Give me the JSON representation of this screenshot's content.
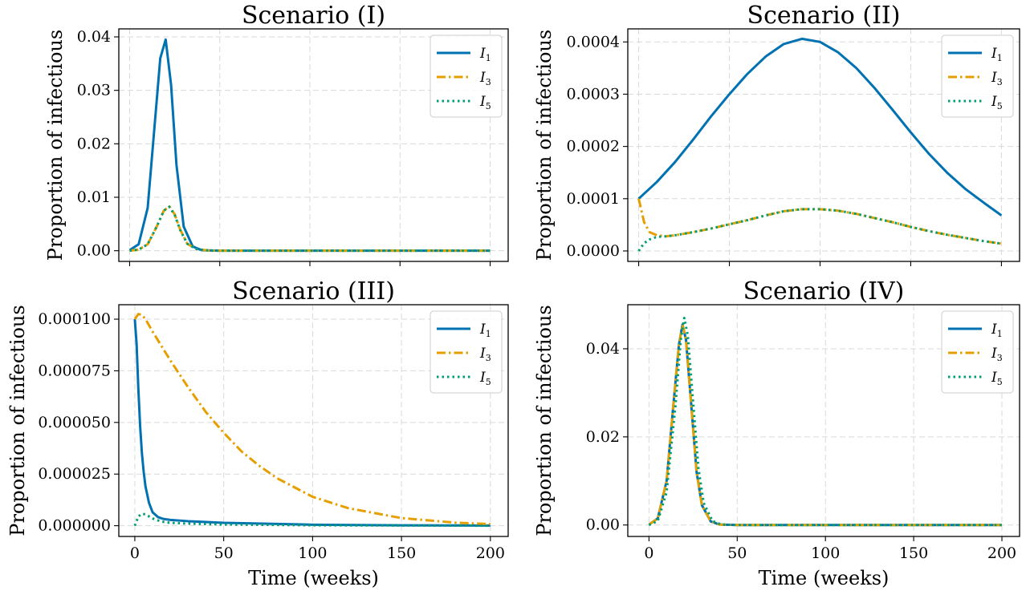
{
  "chart_data": [
    {
      "type": "line",
      "title": "Scenario (I)",
      "xlabel": "",
      "ylabel": "Proportion of infectious",
      "xlim": [
        -6,
        210
      ],
      "ylim": [
        -0.002,
        0.0415
      ],
      "xticks": [
        0,
        50,
        100,
        150,
        200
      ],
      "xtick_labels_visible": false,
      "yticks": [
        0.0,
        0.01,
        0.02,
        0.03,
        0.04
      ],
      "ytick_labels": [
        "0.00",
        "0.01",
        "0.02",
        "0.03",
        "0.04"
      ],
      "grid": true,
      "legend_position": "top-right",
      "series": [
        {
          "name": "I",
          "sub": "1",
          "color": "#0072B2",
          "style": "solid",
          "x": [
            0,
            5,
            10,
            14,
            17,
            20,
            23,
            26,
            30,
            35,
            40,
            50,
            100,
            150,
            200
          ],
          "y": [
            0.0001,
            0.0012,
            0.008,
            0.024,
            0.036,
            0.0395,
            0.031,
            0.016,
            0.0045,
            0.0008,
            0.0001,
            0.0,
            0.0,
            0.0,
            0.0
          ]
        },
        {
          "name": "I",
          "sub": "3",
          "color": "#E69F00",
          "style": "dashdot",
          "x": [
            0,
            5,
            10,
            15,
            19,
            22,
            25,
            28,
            32,
            37,
            45,
            60,
            100,
            150,
            200
          ],
          "y": [
            0.0,
            0.0002,
            0.0012,
            0.0045,
            0.0075,
            0.0083,
            0.0068,
            0.004,
            0.0013,
            0.0003,
            0.0,
            0.0,
            0.0,
            0.0,
            0.0
          ]
        },
        {
          "name": "I",
          "sub": "5",
          "color": "#009E73",
          "style": "dotted",
          "x": [
            0,
            5,
            10,
            15,
            19,
            22,
            25,
            28,
            32,
            37,
            45,
            60,
            100,
            150,
            200
          ],
          "y": [
            0.0,
            0.0002,
            0.0012,
            0.0045,
            0.0075,
            0.0082,
            0.0067,
            0.0039,
            0.0013,
            0.0003,
            0.0,
            0.0,
            0.0,
            0.0,
            0.0
          ]
        }
      ]
    },
    {
      "type": "line",
      "title": "Scenario (II)",
      "xlabel": "",
      "ylabel": "Proportion of infectious",
      "xlim": [
        -6,
        210
      ],
      "ylim": [
        -2e-05,
        0.000425
      ],
      "xticks": [
        0,
        50,
        100,
        150,
        200
      ],
      "xtick_labels_visible": false,
      "yticks": [
        0.0,
        0.0001,
        0.0002,
        0.0003,
        0.0004
      ],
      "ytick_labels": [
        "0.0000",
        "0.0001",
        "0.0002",
        "0.0003",
        "0.0004"
      ],
      "grid": true,
      "legend_position": "top-right",
      "series": [
        {
          "name": "I",
          "sub": "1",
          "color": "#0072B2",
          "style": "solid",
          "x": [
            0,
            10,
            20,
            30,
            40,
            50,
            60,
            70,
            80,
            90,
            100,
            110,
            120,
            130,
            140,
            150,
            160,
            170,
            180,
            190,
            200
          ],
          "y": [
            0.0001,
            0.000132,
            0.00017,
            0.000213,
            0.000258,
            0.0003,
            0.000339,
            0.000372,
            0.000396,
            0.000406,
            0.0004,
            0.00038,
            0.00035,
            0.000312,
            0.00027,
            0.000227,
            0.000186,
            0.00015,
            0.000119,
            9.3e-05,
            6.8e-05
          ]
        },
        {
          "name": "I",
          "sub": "3",
          "color": "#E69F00",
          "style": "dashdot",
          "x": [
            0,
            3,
            6,
            10,
            15,
            20,
            30,
            40,
            50,
            60,
            70,
            80,
            90,
            100,
            110,
            120,
            130,
            140,
            150,
            160,
            170,
            180,
            190,
            200
          ],
          "y": [
            0.0001,
            5.5e-05,
            3.6e-05,
            3e-05,
            2.8e-05,
            3e-05,
            3.6e-05,
            4.3e-05,
            5.1e-05,
            5.9e-05,
            6.8e-05,
            7.6e-05,
            8e-05,
            8e-05,
            7.7e-05,
            7.1e-05,
            6.3e-05,
            5.5e-05,
            4.6e-05,
            3.8e-05,
            3.1e-05,
            2.5e-05,
            1.9e-05,
            1.4e-05
          ]
        },
        {
          "name": "I",
          "sub": "5",
          "color": "#009E73",
          "style": "dotted",
          "x": [
            0,
            3,
            6,
            10,
            15,
            20,
            30,
            40,
            50,
            60,
            70,
            80,
            90,
            100,
            110,
            120,
            130,
            140,
            150,
            160,
            170,
            180,
            190,
            200
          ],
          "y": [
            0.0,
            1.5e-05,
            2.2e-05,
            2.7e-05,
            2.8e-05,
            3e-05,
            3.6e-05,
            4.3e-05,
            5.1e-05,
            5.9e-05,
            6.8e-05,
            7.6e-05,
            8e-05,
            8e-05,
            7.7e-05,
            7.1e-05,
            6.3e-05,
            5.5e-05,
            4.6e-05,
            3.8e-05,
            3.1e-05,
            2.5e-05,
            1.9e-05,
            1.4e-05
          ]
        }
      ]
    },
    {
      "type": "line",
      "title": "Scenario (III)",
      "xlabel": "Time (weeks)",
      "ylabel": "Proportion of infectious",
      "xlim": [
        -9,
        210
      ],
      "ylim": [
        -5.2e-06,
        0.000107
      ],
      "xticks": [
        0,
        50,
        100,
        150,
        200
      ],
      "xtick_labels_visible": true,
      "yticks": [
        0.0,
        2.5e-05,
        5e-05,
        7.5e-05,
        0.0001
      ],
      "ytick_labels": [
        "0.000000",
        "0.000025",
        "0.000050",
        "0.000075",
        "0.000100"
      ],
      "grid": true,
      "legend_position": "top-right",
      "series": [
        {
          "name": "I",
          "sub": "1",
          "color": "#0072B2",
          "style": "solid",
          "x": [
            0,
            1,
            2,
            3,
            4,
            5,
            6,
            8,
            10,
            13,
            16,
            20,
            30,
            50,
            100,
            150,
            200
          ],
          "y": [
            0.0001,
            8.8e-05,
            6.6e-05,
            4.8e-05,
            3.5e-05,
            2.6e-05,
            1.9e-05,
            1.1e-05,
            6.5e-06,
            4.2e-06,
            3.3e-06,
            2.8e-06,
            2.2e-06,
            1.4e-06,
            5e-07,
            2e-07,
            1e-07
          ]
        },
        {
          "name": "I",
          "sub": "3",
          "color": "#E69F00",
          "style": "dashdot",
          "x": [
            0,
            2,
            4,
            6,
            10,
            20,
            30,
            40,
            50,
            60,
            70,
            80,
            100,
            120,
            150,
            180,
            200
          ],
          "y": [
            0.0001,
            0.0001025,
            0.000102,
            0.0001,
            9.4e-05,
            8e-05,
            6.7e-05,
            5.5e-05,
            4.5e-05,
            3.6e-05,
            2.9e-05,
            2.3e-05,
            1.4e-05,
            8.5e-06,
            3.7e-06,
            1.5e-06,
            8e-07
          ]
        },
        {
          "name": "I",
          "sub": "5",
          "color": "#009E73",
          "style": "dotted",
          "x": [
            0,
            2,
            4,
            6,
            8,
            10,
            15,
            20,
            30,
            50,
            100,
            150,
            200
          ],
          "y": [
            0.0,
            4.5e-06,
            5.8e-06,
            5.5e-06,
            4.5e-06,
            3.5e-06,
            2e-06,
            1.4e-06,
            1e-06,
            6e-07,
            2e-07,
            1e-07,
            0.0
          ]
        }
      ]
    },
    {
      "type": "line",
      "title": "Scenario (IV)",
      "xlabel": "Time (weeks)",
      "ylabel": "Proportion of infectious",
      "xlim": [
        -12,
        210
      ],
      "ylim": [
        -0.0026,
        0.05
      ],
      "xticks": [
        0,
        50,
        100,
        150,
        200
      ],
      "xtick_labels_visible": true,
      "yticks": [
        0.0,
        0.02,
        0.04
      ],
      "ytick_labels": [
        "0.00",
        "0.02",
        "0.04"
      ],
      "grid": true,
      "legend_position": "top-right",
      "series": [
        {
          "name": "I",
          "sub": "1",
          "color": "#0072B2",
          "style": "solid",
          "x": [
            0,
            5,
            10,
            14,
            17,
            19,
            21,
            24,
            27,
            30,
            35,
            40,
            50,
            100,
            150,
            200
          ],
          "y": [
            0.0001,
            0.0015,
            0.01,
            0.028,
            0.041,
            0.0455,
            0.042,
            0.027,
            0.012,
            0.0045,
            0.0008,
            0.0001,
            0.0,
            0.0,
            0.0,
            0.0
          ]
        },
        {
          "name": "I",
          "sub": "3",
          "color": "#E69F00",
          "style": "dashdot",
          "x": [
            0,
            5,
            10,
            14,
            17,
            19,
            21,
            24,
            27,
            30,
            35,
            40,
            50,
            100,
            150,
            200
          ],
          "y": [
            0.0001,
            0.0015,
            0.01,
            0.028,
            0.041,
            0.0455,
            0.042,
            0.027,
            0.012,
            0.0045,
            0.0008,
            0.0001,
            0.0,
            0.0,
            0.0,
            0.0
          ]
        },
        {
          "name": "I",
          "sub": "5",
          "color": "#009E73",
          "style": "dotted",
          "x": [
            0,
            5,
            10,
            15,
            18,
            20,
            22,
            25,
            28,
            31,
            36,
            41,
            50,
            100,
            150,
            200
          ],
          "y": [
            0.0,
            0.0009,
            0.0075,
            0.027,
            0.042,
            0.047,
            0.043,
            0.028,
            0.013,
            0.005,
            0.0009,
            0.0001,
            0.0,
            0.0,
            0.0,
            0.0
          ]
        }
      ]
    }
  ]
}
